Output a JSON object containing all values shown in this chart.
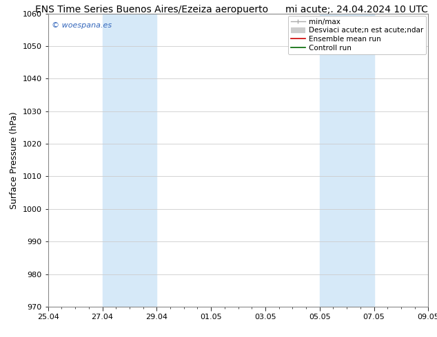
{
  "title_left": "ENS Time Series Buenos Aires/Ezeiza aeropuerto",
  "title_right": "mi acute;. 24.04.2024 10 UTC",
  "ylabel": "Surface Pressure (hPa)",
  "ylim": [
    970,
    1060
  ],
  "yticks": [
    970,
    980,
    990,
    1000,
    1010,
    1020,
    1030,
    1040,
    1050,
    1060
  ],
  "xlabel_ticks": [
    "25.04",
    "27.04",
    "29.04",
    "01.05",
    "03.05",
    "05.05",
    "07.05",
    "09.05"
  ],
  "x_tick_positions": [
    0,
    2,
    4,
    6,
    8,
    10,
    12,
    14
  ],
  "shaded_regions": [
    {
      "x_start": 2,
      "x_end": 4,
      "color": "#d6e9f8"
    },
    {
      "x_start": 10,
      "x_end": 12,
      "color": "#d6e9f8"
    }
  ],
  "watermark": "© woespana.es",
  "watermark_color": "#3366bb",
  "legend_labels": [
    "min/max",
    "Desviaci acute;n est acute;ndar",
    "Ensemble mean run",
    "Controll run"
  ],
  "legend_colors": [
    "#aaaaaa",
    "#cccccc",
    "#cc0000",
    "#006600"
  ],
  "bg_color": "#ffffff",
  "grid_color": "#cccccc",
  "font_size_title": 10,
  "font_size_legend": 7.5,
  "font_size_ticks": 8,
  "font_size_ylabel": 9,
  "font_size_watermark": 8
}
